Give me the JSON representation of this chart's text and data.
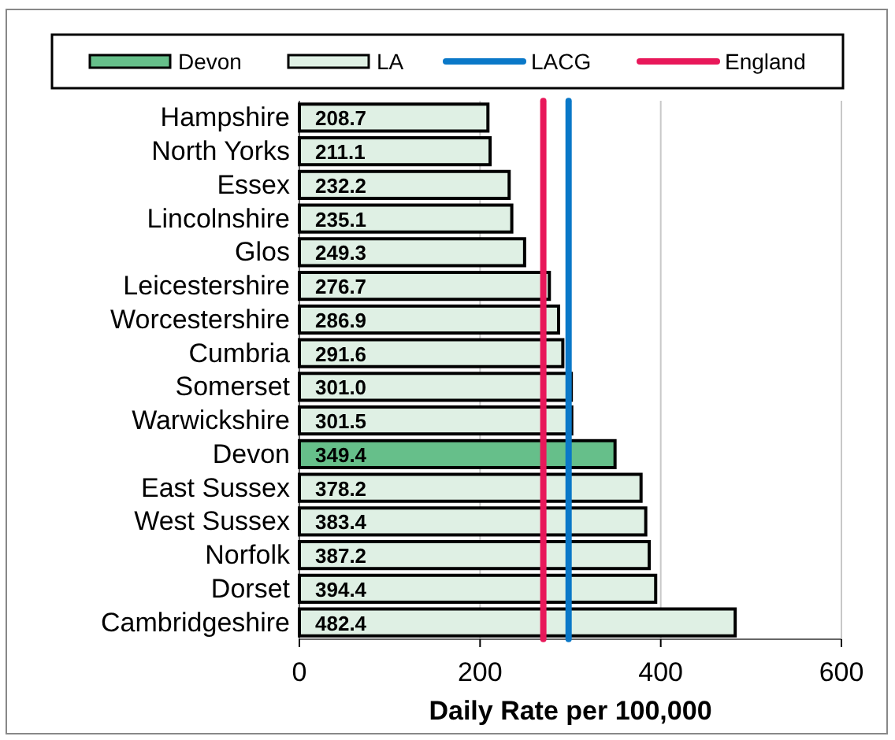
{
  "chart_data": {
    "type": "bar",
    "orientation": "horizontal",
    "xlabel": "Daily Rate per 100,000",
    "categories": [
      "Hampshire",
      "North Yorks",
      "Essex",
      "Lincolnshire",
      "Glos",
      "Leicestershire",
      "Worcestershire",
      "Cumbria",
      "Somerset",
      "Warwickshire",
      "Devon",
      "East Sussex",
      "West Sussex",
      "Norfolk",
      "Dorset",
      "Cambridgeshire"
    ],
    "series": [
      {
        "name": "Devon",
        "color": "#66bf8a",
        "values": [
          null,
          null,
          null,
          null,
          null,
          null,
          null,
          null,
          null,
          null,
          349.4,
          null,
          null,
          null,
          null,
          null
        ],
        "value_labels": [
          null,
          null,
          null,
          null,
          null,
          null,
          null,
          null,
          null,
          null,
          "349.4",
          null,
          null,
          null,
          null,
          null
        ]
      },
      {
        "name": "LA",
        "color": "#dff0e4",
        "values": [
          208.7,
          211.1,
          232.2,
          235.1,
          249.3,
          276.7,
          286.9,
          291.6,
          301.0,
          301.5,
          null,
          378.2,
          383.4,
          387.2,
          394.4,
          482.4
        ],
        "value_labels": [
          "208.7",
          "211.1",
          "232.2",
          "235.1",
          "249.3",
          "276.7",
          "286.9",
          "291.6",
          "301.0",
          "301.5",
          null,
          "378.2",
          "383.4",
          "387.2",
          "394.4",
          "482.4"
        ]
      }
    ],
    "ref_lines": [
      {
        "axis": "x",
        "value": 298,
        "label": "LACG",
        "color": "#0a78c8"
      },
      {
        "axis": "x",
        "value": 270,
        "label": "England",
        "color": "#e8185a"
      }
    ],
    "xlim": [
      0,
      600
    ],
    "xticks": [
      0,
      200,
      400,
      600
    ],
    "grid": "x",
    "legend": "top"
  }
}
